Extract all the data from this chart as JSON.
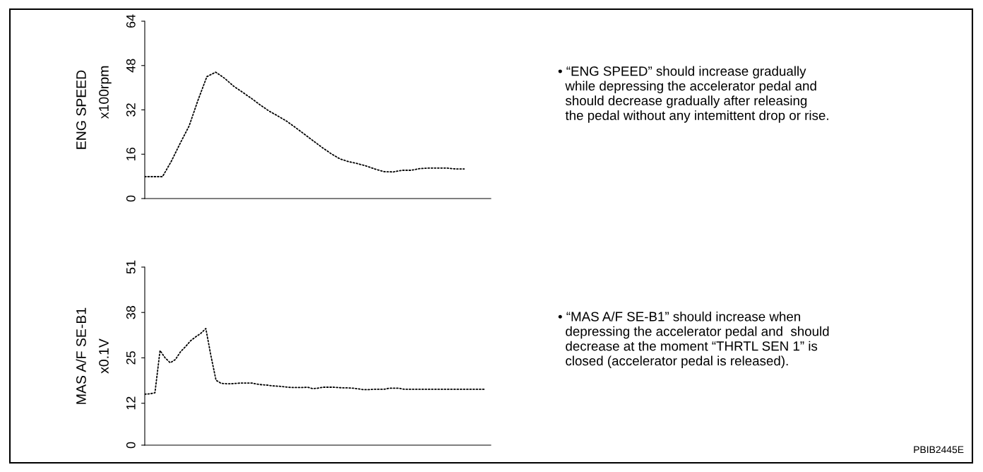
{
  "chart_data": [
    {
      "type": "line",
      "ylabel": "ENG SPEED",
      "categories": [
        null,
        null,
        null,
        null,
        null,
        null,
        null,
        null,
        null,
        null,
        null,
        null,
        null,
        null,
        null,
        null,
        null,
        null,
        null,
        null,
        null,
        null,
        null,
        null,
        null,
        null,
        null,
        null,
        null,
        null,
        null,
        null,
        null,
        null,
        null,
        null,
        null,
        null,
        null,
        null
      ],
      "series": [
        {
          "color": "#000000",
          "values": [
            7.9,
            7.9,
            7.9,
            13.5,
            20,
            26.2,
            35.5,
            44,
            45.6,
            43.4,
            40.6,
            38.4,
            36.2,
            33.8,
            31.6,
            29.8,
            27.9,
            25.6,
            23.2,
            20.8,
            18.4,
            16.2,
            14.3,
            13.3,
            12.6,
            11.7,
            10.6,
            9.7,
            9.6,
            10.2,
            10.2,
            10.8,
            11,
            11,
            11,
            10.7,
            10.7,
            null,
            null,
            null
          ]
        }
      ],
      "ylim": [
        0,
        64
      ],
      "yticks": [
        0,
        16,
        32,
        48,
        64
      ],
      "tick_labels": "y",
      "line_style": "dotted",
      "grid": false,
      "legend": false,
      "annotations": [
        "x100rpm",
        "• “ENG SPEED” should increase gradually\n  while depressing the accelerator pedal and\n  should decrease gradually after releasing\n  the pedal without any intemittent drop or rise."
      ]
    },
    {
      "type": "line",
      "ylabel": "MAS A/F SE-B1",
      "categories": [
        null,
        null,
        null,
        null,
        null,
        null,
        null,
        null,
        null,
        null,
        null,
        null,
        null,
        null,
        null,
        null,
        null,
        null,
        null,
        null,
        null,
        null,
        null,
        null,
        null,
        null,
        null,
        null,
        null,
        null,
        null,
        null,
        null,
        null,
        null,
        null,
        null,
        null,
        null,
        null,
        null,
        null,
        null,
        null,
        null,
        null,
        null,
        null,
        null,
        null,
        null,
        null,
        null,
        null,
        null,
        null,
        null,
        null,
        null,
        null,
        null,
        null,
        null,
        null,
        null,
        null,
        null,
        null,
        null
      ],
      "series": [
        {
          "color": "#000000",
          "values": [
            14.6,
            14.7,
            15,
            27.1,
            25,
            23.6,
            24.5,
            26.7,
            28.2,
            29.9,
            31,
            32,
            33.4,
            25.6,
            18.6,
            17.7,
            17.6,
            17.6,
            17.7,
            17.8,
            17.8,
            17.8,
            17.5,
            17.3,
            17.2,
            17,
            16.9,
            16.8,
            16.6,
            16.5,
            16.5,
            16.5,
            16.6,
            16.2,
            16.3,
            16.6,
            16.6,
            16.6,
            16.5,
            16.4,
            16.4,
            16.3,
            16.1,
            15.9,
            15.9,
            16,
            16,
            16,
            16.3,
            16.3,
            16.3,
            16,
            16,
            16,
            16,
            16,
            16,
            16,
            16,
            16,
            16,
            16,
            16,
            16,
            16,
            16,
            16,
            16,
            null
          ]
        }
      ],
      "ylim": [
        0,
        51
      ],
      "yticks": [
        0,
        12,
        25,
        38,
        51
      ],
      "tick_labels": "y",
      "line_style": "dotted",
      "grid": false,
      "legend": false,
      "annotations": [
        "x0.1V",
        "• “MAS A/F SE-B1” should increase when\n  depressing the accelerator pedal and  should\n  decrease at the moment “THRTL SEN 1” is\n  closed (accelerator pedal is released).",
        "PBIB2445E"
      ]
    }
  ]
}
